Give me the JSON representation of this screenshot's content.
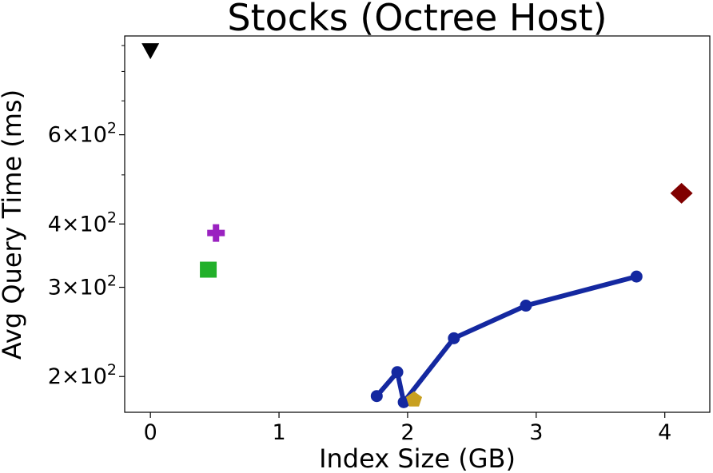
{
  "chart_data": {
    "type": "scatter",
    "title": "Stocks (Octree Host)",
    "xlabel": "Index Size (GB)",
    "ylabel": "Avg Query Time (ms)",
    "xlim": [
      -0.2,
      4.35
    ],
    "ylim": [
      170,
      940
    ],
    "y_scale": "log",
    "grid": false,
    "x_ticks": [
      {
        "value": 0,
        "label": "0"
      },
      {
        "value": 1,
        "label": "1"
      },
      {
        "value": 2,
        "label": "2"
      },
      {
        "value": 3,
        "label": "3"
      },
      {
        "value": 4,
        "label": "4"
      }
    ],
    "y_ticks_major": [
      {
        "value": 200,
        "mantissa": "2",
        "exponent": "2"
      },
      {
        "value": 300,
        "mantissa": "3",
        "exponent": "2"
      },
      {
        "value": 400,
        "mantissa": "4",
        "exponent": "2"
      },
      {
        "value": 600,
        "mantissa": "6",
        "exponent": "2"
      }
    ],
    "y_ticks_minor": [
      500,
      700,
      800,
      900
    ],
    "series": [
      {
        "marker": "line-circle",
        "color": "#1428a0",
        "points": [
          [
            1.76,
            183
          ],
          [
            1.92,
            204
          ],
          [
            1.97,
            178
          ],
          [
            2.36,
            238
          ],
          [
            2.92,
            276
          ],
          [
            3.78,
            315
          ]
        ]
      },
      {
        "marker": "triangle-down",
        "color": "#000000",
        "points": [
          [
            0.0,
            880
          ]
        ]
      },
      {
        "marker": "plus",
        "color": "#9a22c0",
        "points": [
          [
            0.51,
            384
          ]
        ]
      },
      {
        "marker": "square",
        "color": "#22b02a",
        "points": [
          [
            0.45,
            325
          ]
        ]
      },
      {
        "marker": "diamond",
        "color": "#800000",
        "points": [
          [
            4.13,
            460
          ]
        ]
      },
      {
        "marker": "pentagon",
        "color": "#c8a020",
        "points": [
          [
            2.05,
            180
          ]
        ]
      }
    ]
  }
}
